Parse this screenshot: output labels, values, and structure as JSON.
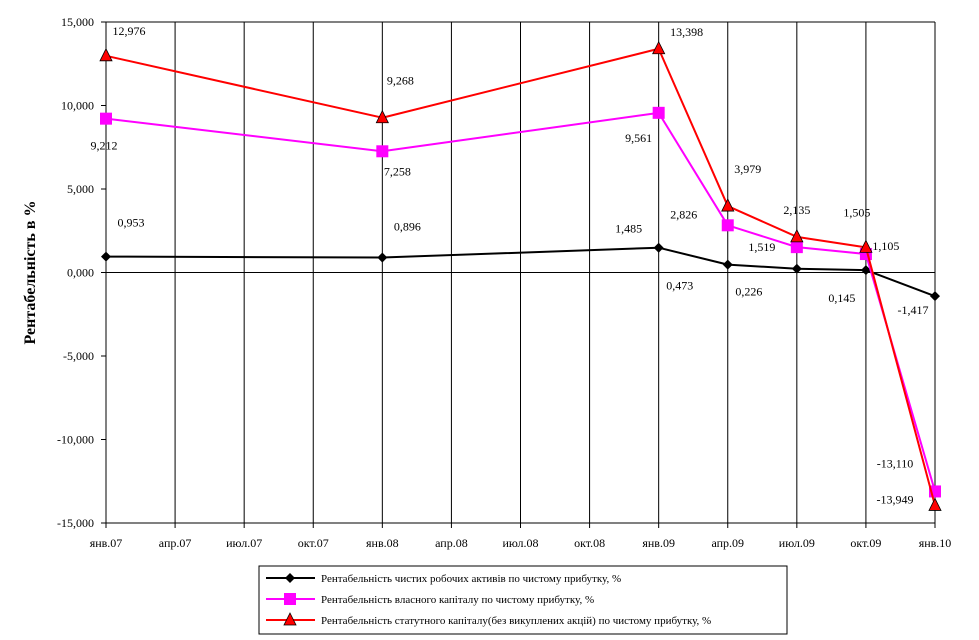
{
  "chart_data": {
    "type": "line",
    "ylabel": "Рентабельність в %",
    "ylim": [
      -15,
      15
    ],
    "y_ticks": [
      15,
      10,
      5,
      0,
      -5,
      -10,
      -15
    ],
    "y_tick_labels": [
      "15,000",
      "10,000",
      "5,000",
      "0,000",
      "-5,000",
      "-10,000",
      "-15,000"
    ],
    "x_ticks": [
      "янв.07",
      "апр.07",
      "июл.07",
      "окт.07",
      "янв.08",
      "апр.08",
      "июл.08",
      "окт.08",
      "янв.09",
      "апр.09",
      "июл.09",
      "окт.09",
      "янв.10"
    ],
    "x": [
      "2007-01",
      "2008-01",
      "2009-01",
      "2009-04",
      "2009-07",
      "2009-10",
      "2010-01"
    ],
    "grid": {
      "vertical": true,
      "horizontal": false
    },
    "legend_position": "bottom",
    "series": [
      {
        "name": "Рентабельність чистих робочих активів по чистому прибутку, %",
        "color": "#000000",
        "marker": "diamond",
        "values": [
          0.953,
          0.896,
          1.485,
          0.473,
          0.226,
          0.145,
          -1.417
        ],
        "labels": [
          "0,953",
          "0,896",
          "1,485",
          "0,473",
          "0,226",
          "0,145",
          "-1,417"
        ]
      },
      {
        "name": "Рентабельність власного капіталу по чистому прибутку, %",
        "color": "#ff00ff",
        "marker": "square",
        "values": [
          9.212,
          7.258,
          9.561,
          2.826,
          1.519,
          1.105,
          -13.11
        ],
        "labels": [
          "9,212",
          "7,258",
          "9,561",
          "2,826",
          "1,519",
          "1,105",
          "-13,110"
        ]
      },
      {
        "name": "Рентабельність статутного капіталу(без викуплених акцій) по чистому прибутку, %",
        "color": "#ff0000",
        "marker": "triangle",
        "values": [
          12.976,
          9.268,
          13.398,
          3.979,
          2.135,
          1.505,
          -13.949
        ],
        "labels": [
          "12,976",
          "9,268",
          "13,398",
          "3,979",
          "2,135",
          "1,505",
          "-13,949"
        ]
      }
    ]
  }
}
